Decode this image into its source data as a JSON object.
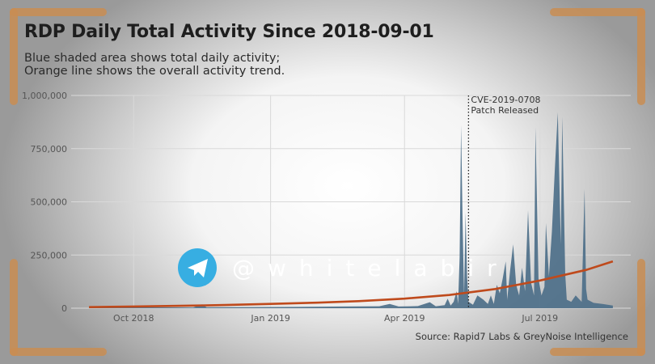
{
  "chart_data": {
    "type": "area",
    "title": "RDP Daily Total Activity Since 2018-09-01",
    "subtitle_lines": [
      "Blue shaded area shows total daily activity;",
      "Orange line shows the overall activity trend."
    ],
    "xlabel": "",
    "ylabel": "",
    "x_start": "2018-09-01",
    "x_end": "2019-08-19",
    "xlim": [
      "2018-08-20",
      "2019-08-31"
    ],
    "ylim": [
      0,
      1000000
    ],
    "y_ticks": [
      0,
      250000,
      500000,
      750000,
      1000000
    ],
    "y_tick_labels": [
      "0",
      "250,000",
      "500,000",
      "750,000",
      "1,000,000"
    ],
    "x_ticks": [
      "2018-10-01",
      "2019-01-01",
      "2019-04-01",
      "2019-07-01"
    ],
    "x_tick_labels": [
      "Oct 2018",
      "Jan 2019",
      "Apr 2019",
      "Jul 2019"
    ],
    "grid": true,
    "annotation": {
      "date": "2019-05-14",
      "lines": [
        "CVE-2019-0708",
        "Patch Released"
      ]
    },
    "activity_points": [
      [
        "2018-09-01",
        3000
      ],
      [
        "2018-10-15",
        4000
      ],
      [
        "2018-11-10",
        3500
      ],
      [
        "2018-11-16",
        18000
      ],
      [
        "2018-11-19",
        4000
      ],
      [
        "2018-12-20",
        5000
      ],
      [
        "2019-01-20",
        6000
      ],
      [
        "2019-02-20",
        8000
      ],
      [
        "2019-03-15",
        9000
      ],
      [
        "2019-03-22",
        20000
      ],
      [
        "2019-03-28",
        8000
      ],
      [
        "2019-04-10",
        10000
      ],
      [
        "2019-04-18",
        28000
      ],
      [
        "2019-04-22",
        9000
      ],
      [
        "2019-04-28",
        14000
      ],
      [
        "2019-04-30",
        45000
      ],
      [
        "2019-05-02",
        12000
      ],
      [
        "2019-05-04",
        30000
      ],
      [
        "2019-05-06",
        80000
      ],
      [
        "2019-05-07",
        20000
      ],
      [
        "2019-05-08",
        240000
      ],
      [
        "2019-05-09",
        860000
      ],
      [
        "2019-05-10",
        420000
      ],
      [
        "2019-05-11",
        60000
      ],
      [
        "2019-05-12",
        450000
      ],
      [
        "2019-05-13",
        150000
      ],
      [
        "2019-05-14",
        30000
      ],
      [
        "2019-05-17",
        16000
      ],
      [
        "2019-05-20",
        60000
      ],
      [
        "2019-05-24",
        40000
      ],
      [
        "2019-05-27",
        20000
      ],
      [
        "2019-05-29",
        60000
      ],
      [
        "2019-05-31",
        20000
      ],
      [
        "2019-06-02",
        110000
      ],
      [
        "2019-06-04",
        70000
      ],
      [
        "2019-06-06",
        140000
      ],
      [
        "2019-06-08",
        220000
      ],
      [
        "2019-06-09",
        40000
      ],
      [
        "2019-06-11",
        180000
      ],
      [
        "2019-06-13",
        300000
      ],
      [
        "2019-06-15",
        110000
      ],
      [
        "2019-06-17",
        60000
      ],
      [
        "2019-06-19",
        190000
      ],
      [
        "2019-06-21",
        80000
      ],
      [
        "2019-06-23",
        460000
      ],
      [
        "2019-06-25",
        120000
      ],
      [
        "2019-06-27",
        60000
      ],
      [
        "2019-06-28",
        850000
      ],
      [
        "2019-06-30",
        140000
      ],
      [
        "2019-07-02",
        60000
      ],
      [
        "2019-07-04",
        100000
      ],
      [
        "2019-07-05",
        400000
      ],
      [
        "2019-07-07",
        150000
      ],
      [
        "2019-07-09",
        360000
      ],
      [
        "2019-07-11",
        650000
      ],
      [
        "2019-07-13",
        920000
      ],
      [
        "2019-07-15",
        300000
      ],
      [
        "2019-07-16",
        900000
      ],
      [
        "2019-07-18",
        160000
      ],
      [
        "2019-07-19",
        40000
      ],
      [
        "2019-07-22",
        30000
      ],
      [
        "2019-07-25",
        60000
      ],
      [
        "2019-07-29",
        30000
      ],
      [
        "2019-07-31",
        560000
      ],
      [
        "2019-08-01",
        90000
      ],
      [
        "2019-08-02",
        40000
      ],
      [
        "2019-08-06",
        25000
      ],
      [
        "2019-08-12",
        20000
      ],
      [
        "2019-08-19",
        12000
      ]
    ],
    "trend_points": [
      [
        "2018-09-01",
        5000
      ],
      [
        "2018-10-01",
        8000
      ],
      [
        "2018-11-01",
        11000
      ],
      [
        "2018-12-01",
        15000
      ],
      [
        "2019-01-01",
        20000
      ],
      [
        "2019-02-01",
        26000
      ],
      [
        "2019-03-01",
        33000
      ],
      [
        "2019-04-01",
        45000
      ],
      [
        "2019-05-01",
        62000
      ],
      [
        "2019-06-01",
        90000
      ],
      [
        "2019-07-01",
        130000
      ],
      [
        "2019-08-01",
        180000
      ],
      [
        "2019-08-19",
        220000
      ]
    ],
    "area_color": "#4d6f89",
    "trend_color": "#bf4a1c",
    "source": "Source: Rapid7 Labs & GreyNoise Intelligence"
  },
  "watermark": {
    "text": "@whitelabir",
    "icon": "telegram-icon",
    "icon_color": "#37aee2"
  }
}
